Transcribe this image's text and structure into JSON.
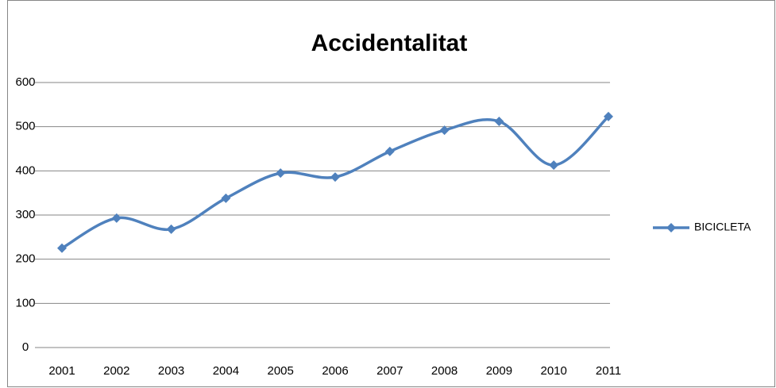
{
  "chart_data": {
    "type": "line",
    "title": "Accidentalitat",
    "categories": [
      "2001",
      "2002",
      "2003",
      "2004",
      "2005",
      "2006",
      "2007",
      "2008",
      "2009",
      "2010",
      "2011"
    ],
    "series": [
      {
        "name": "BICICLETA",
        "color": "#4f81bd",
        "values": [
          225,
          293,
          268,
          338,
          395,
          386,
          444,
          492,
          512,
          413,
          523
        ]
      }
    ],
    "ylim": [
      0,
      600
    ],
    "yticks": [
      0,
      100,
      200,
      300,
      400,
      500,
      600
    ],
    "grid": true,
    "smooth": true,
    "legend": "right"
  }
}
